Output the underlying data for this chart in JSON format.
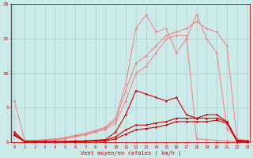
{
  "xlabel": "Vent moyen/en rafales ( km/h )",
  "background_color": "#cdeaea",
  "grid_color": "#aacece",
  "x": [
    0,
    1,
    2,
    3,
    4,
    5,
    6,
    7,
    8,
    9,
    10,
    11,
    12,
    13,
    14,
    15,
    16,
    17,
    18,
    19,
    20,
    21,
    22,
    23
  ],
  "line_pink1_y": [
    6.0,
    0.3,
    0.3,
    0.4,
    0.5,
    0.7,
    1.0,
    1.3,
    1.7,
    2.2,
    3.5,
    8.5,
    16.5,
    18.5,
    16.0,
    16.5,
    13.0,
    15.0,
    18.5,
    15.0,
    13.0,
    2.0,
    0.5,
    0.3
  ],
  "line_pink2_y": [
    1.5,
    0.2,
    0.2,
    0.3,
    0.4,
    0.6,
    0.9,
    1.2,
    1.6,
    2.1,
    3.2,
    7.5,
    11.5,
    12.5,
    14.0,
    15.5,
    16.0,
    16.5,
    17.5,
    16.5,
    16.0,
    14.0,
    0.3,
    0.2
  ],
  "line_pink3_y": [
    1.2,
    0.1,
    0.2,
    0.3,
    0.4,
    0.5,
    0.8,
    1.1,
    1.5,
    1.9,
    2.8,
    6.0,
    10.0,
    11.0,
    13.0,
    15.0,
    15.5,
    15.5,
    0.5,
    0.4,
    0.3,
    0.2,
    0.1,
    0.1
  ],
  "line_red1_y": [
    1.5,
    0.1,
    0.1,
    0.1,
    0.1,
    0.1,
    0.2,
    0.2,
    0.3,
    0.4,
    1.5,
    4.0,
    7.5,
    7.0,
    6.5,
    6.0,
    6.5,
    4.0,
    3.5,
    4.0,
    4.0,
    3.0,
    0.3,
    0.2
  ],
  "line_red2_y": [
    1.2,
    0.1,
    0.1,
    0.1,
    0.1,
    0.1,
    0.1,
    0.2,
    0.2,
    0.3,
    0.8,
    1.8,
    2.5,
    2.5,
    2.8,
    3.0,
    3.5,
    3.5,
    3.5,
    3.5,
    3.5,
    3.0,
    0.2,
    0.1
  ],
  "line_red3_y": [
    1.0,
    0.1,
    0.1,
    0.1,
    0.1,
    0.1,
    0.1,
    0.1,
    0.2,
    0.2,
    0.5,
    1.2,
    1.8,
    2.0,
    2.2,
    2.5,
    3.0,
    3.0,
    3.0,
    3.0,
    3.2,
    2.8,
    0.1,
    0.1
  ],
  "pink_color": "#f08080",
  "red_color": "#cc0000",
  "ylim": [
    0,
    20
  ],
  "yticks": [
    0,
    5,
    10,
    15,
    20
  ]
}
